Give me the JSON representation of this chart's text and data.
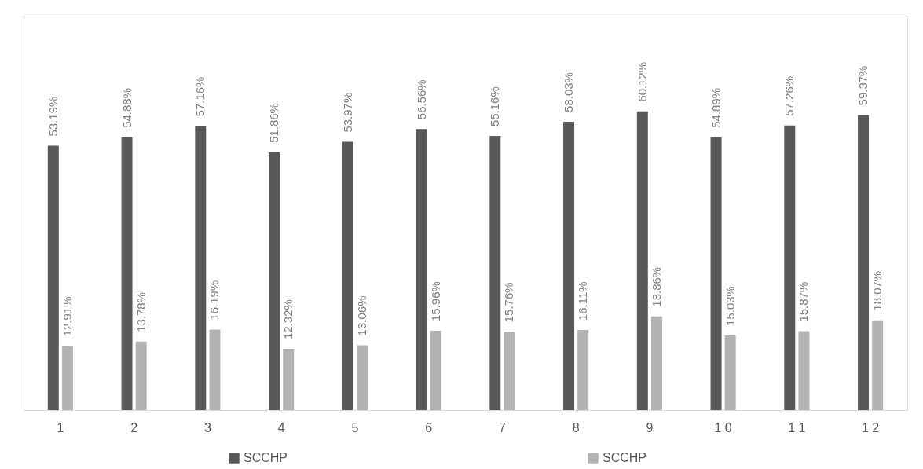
{
  "chart_data": {
    "type": "bar",
    "categories": [
      "1",
      "2",
      "3",
      "4",
      "5",
      "6",
      "7",
      "8",
      "9",
      "1 0",
      "1 1",
      "1 2"
    ],
    "series": [
      {
        "name": "SCCHP",
        "color": "#595959",
        "values": [
          53.19,
          54.88,
          57.16,
          51.86,
          53.97,
          56.56,
          55.16,
          58.03,
          60.12,
          54.89,
          57.26,
          59.37
        ],
        "value_labels": [
          "53.19%",
          "54.88%",
          "57.16%",
          "51.86%",
          "53.97%",
          "56.56%",
          "55.16%",
          "58.03%",
          "60.12%",
          "54.89%",
          "57.26%",
          "59.37%"
        ]
      },
      {
        "name": "SCCHP",
        "color": "#b3b3b3",
        "values": [
          12.91,
          13.78,
          16.19,
          12.32,
          13.06,
          15.96,
          15.76,
          16.11,
          18.86,
          15.03,
          15.87,
          18.07
        ],
        "value_labels": [
          "12.91%",
          "13.78%",
          "16.19%",
          "12.32%",
          "13.06%",
          "15.96%",
          "15.76%",
          "16.11%",
          "18.86%",
          "15.03%",
          "15.87%",
          "18.07%"
        ]
      }
    ],
    "legend": "bottom",
    "grid": false
  }
}
